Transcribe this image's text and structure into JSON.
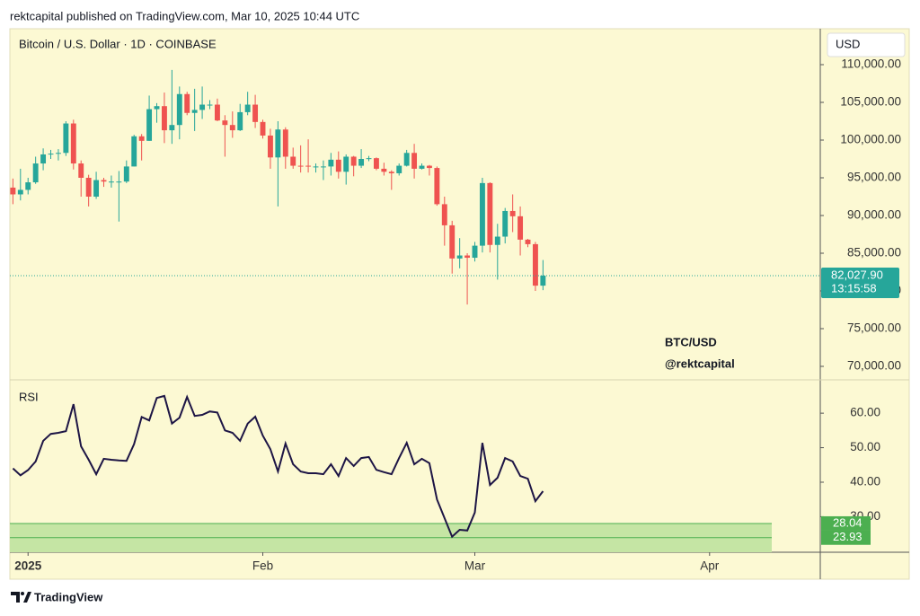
{
  "header": "rektcapital published on TradingView.com, Mar 10, 2025 10:44 UTC",
  "footer": "TradingView",
  "chart_data": [
    {
      "type": "candlestick",
      "title": "Bitcoin / U.S. Dollar · 1D · COINBASE",
      "currency": "USD",
      "annotation": [
        "BTC/USD",
        "@rektcapital"
      ],
      "up_color": "#26a69a",
      "down_color": "#ef5350",
      "x": [
        0,
        1,
        2,
        3,
        4,
        5,
        6,
        7,
        8,
        9,
        10,
        11,
        12,
        13,
        14,
        15,
        16,
        17,
        18,
        19,
        20,
        21,
        22,
        23,
        24,
        25,
        26,
        27,
        28,
        29,
        30,
        31,
        32,
        33,
        34,
        35,
        36,
        37,
        38,
        39,
        40,
        41,
        42,
        43,
        44,
        45,
        46,
        47,
        48,
        49,
        50,
        51,
        52,
        53,
        54,
        55,
        56,
        57,
        58,
        59,
        60,
        61,
        62,
        63,
        64,
        65,
        66,
        67,
        68,
        69,
        70
      ],
      "open": [
        93700,
        92800,
        93400,
        94400,
        96900,
        98100,
        98200,
        98300,
        102200,
        96900,
        95000,
        92500,
        94700,
        94500,
        94500,
        94500,
        96500,
        100500,
        99900,
        104100,
        104500,
        101300,
        102000,
        106100,
        103600,
        104000,
        104700,
        104700,
        102600,
        102000,
        101300,
        103700,
        104700,
        102400,
        100600,
        97700,
        101400,
        97800,
        96600,
        96600,
        96500,
        96500,
        96500,
        97400,
        95800,
        97800,
        96600,
        97500,
        97600,
        96200,
        95800,
        95600,
        96600,
        98300,
        96200,
        96600,
        96300,
        91500,
        88700,
        84300,
        84700,
        84400,
        86000,
        94300,
        86100,
        87200,
        90600,
        89900,
        86800,
        86200,
        80700
      ],
      "high": [
        94900,
        96200,
        95000,
        97800,
        98900,
        98700,
        98800,
        102500,
        102700,
        97300,
        95400,
        95800,
        95000,
        95300,
        95900,
        97300,
        100700,
        100800,
        105900,
        104900,
        106300,
        109300,
        107100,
        106400,
        106800,
        107100,
        105300,
        105500,
        103300,
        103800,
        104800,
        106400,
        106000,
        102700,
        101500,
        102500,
        101700,
        99000,
        99300,
        100100,
        96900,
        97300,
        98300,
        98500,
        98100,
        97900,
        98800,
        97900,
        97700,
        97000,
        96000,
        96900,
        98700,
        99500,
        96900,
        96700,
        96500,
        92500,
        89300,
        87000,
        85000,
        86500,
        95000,
        94400,
        88900,
        91000,
        92800,
        91200,
        86900,
        86500,
        84100
      ],
      "low": [
        91500,
        92000,
        92800,
        94200,
        96000,
        97500,
        97300,
        97900,
        96100,
        92500,
        91200,
        92200,
        93800,
        93700,
        89200,
        94300,
        96500,
        97300,
        99900,
        102300,
        99600,
        99500,
        100100,
        103300,
        101200,
        102800,
        104100,
        102500,
        97800,
        100300,
        101200,
        103300,
        101600,
        100200,
        96200,
        91200,
        96200,
        96200,
        95700,
        95700,
        95700,
        94700,
        95300,
        94900,
        94100,
        95200,
        96300,
        97200,
        96000,
        95300,
        93400,
        95300,
        96500,
        94900,
        96100,
        95300,
        91300,
        86000,
        82300,
        83000,
        78200,
        83900,
        85100,
        85100,
        81500,
        86300,
        87800,
        84700,
        85800,
        80000,
        80100
      ],
      "close": [
        92800,
        93400,
        94400,
        96900,
        98100,
        98200,
        98300,
        102200,
        96900,
        95000,
        92500,
        94700,
        94500,
        94500,
        94500,
        96500,
        100500,
        99900,
        104100,
        104500,
        101300,
        102000,
        106100,
        103600,
        104000,
        104700,
        104700,
        102600,
        102000,
        101300,
        103700,
        104700,
        102400,
        100600,
        97700,
        101400,
        97800,
        96600,
        96500,
        96500,
        96500,
        96500,
        97400,
        95800,
        97800,
        96600,
        97500,
        97600,
        96200,
        95800,
        95600,
        96600,
        98300,
        96200,
        96600,
        96300,
        91500,
        88700,
        84300,
        84700,
        84400,
        86000,
        94300,
        86100,
        87200,
        90600,
        89900,
        86800,
        86200,
        80700,
        82027.9
      ],
      "xlim": [
        -0.4,
        106.5
      ],
      "ylim": [
        68333,
        114762
      ],
      "yticks": [
        {
          "value": 70000,
          "label": "70,000.00"
        },
        {
          "value": 75000,
          "label": "75,000.00"
        },
        {
          "value": 80000,
          "label": "80,000.00"
        },
        {
          "value": 85000,
          "label": "85,000.00"
        },
        {
          "value": 90000,
          "label": "90,000.00"
        },
        {
          "value": 95000,
          "label": "95,000.00"
        },
        {
          "value": 100000,
          "label": "100,000.00"
        },
        {
          "value": 105000,
          "label": "105,000.00"
        },
        {
          "value": 110000,
          "label": "110,000.00"
        }
      ],
      "last_price": {
        "value": 82027.9,
        "label": "82,027.90"
      },
      "countdown": "13:15:58"
    },
    {
      "type": "line",
      "title": "RSI",
      "color": "#1d1545",
      "x": [
        0,
        1,
        2,
        3,
        4,
        5,
        6,
        7,
        8,
        9,
        10,
        11,
        12,
        13,
        14,
        15,
        16,
        17,
        18,
        19,
        20,
        21,
        22,
        23,
        24,
        25,
        26,
        27,
        28,
        29,
        30,
        31,
        32,
        33,
        34,
        35,
        36,
        37,
        38,
        39,
        40,
        41,
        42,
        43,
        44,
        45,
        46,
        47,
        48,
        49,
        50,
        51,
        52,
        53,
        54,
        55,
        56,
        57,
        58,
        59,
        60,
        61,
        62,
        63,
        64,
        65,
        66,
        67,
        68,
        69,
        70
      ],
      "values": [
        44.0,
        42.0,
        43.5,
        46.0,
        52.0,
        54.0,
        54.3,
        54.8,
        62.6,
        50.4,
        46.5,
        42.3,
        46.8,
        46.5,
        46.3,
        46.2,
        51.0,
        58.9,
        57.9,
        64.4,
        65.0,
        57.0,
        58.7,
        64.7,
        59.2,
        59.5,
        60.5,
        60.2,
        55.0,
        54.3,
        52.0,
        57.0,
        59.0,
        53.5,
        49.6,
        43.1,
        51.2,
        45.2,
        43.1,
        42.6,
        42.6,
        42.3,
        45.2,
        41.8,
        47.0,
        44.7,
        47.0,
        47.3,
        43.6,
        42.9,
        42.3,
        47.0,
        51.4,
        45.2,
        46.8,
        45.5,
        35.0,
        29.6,
        24.2,
        26.2,
        26.0,
        31.2,
        51.4,
        39.2,
        41.3,
        47.0,
        46.0,
        41.8,
        41.0,
        34.5,
        37.4
      ],
      "levels": [
        28.04,
        23.93
      ],
      "level_color": "#4caf50",
      "xlim": [
        -0.4,
        106.5
      ],
      "ylim": [
        19.7,
        69.4
      ],
      "yticks": [
        {
          "value": 30,
          "label": "30.00"
        },
        {
          "value": 40,
          "label": "40.00"
        },
        {
          "value": 50,
          "label": "50.00"
        },
        {
          "value": 60,
          "label": "60.00"
        }
      ],
      "xticks": [
        {
          "value": 2,
          "label": "2025"
        },
        {
          "value": 33,
          "label": "Feb"
        },
        {
          "value": 61,
          "label": "Mar"
        },
        {
          "value": 92,
          "label": "Apr"
        }
      ]
    }
  ]
}
